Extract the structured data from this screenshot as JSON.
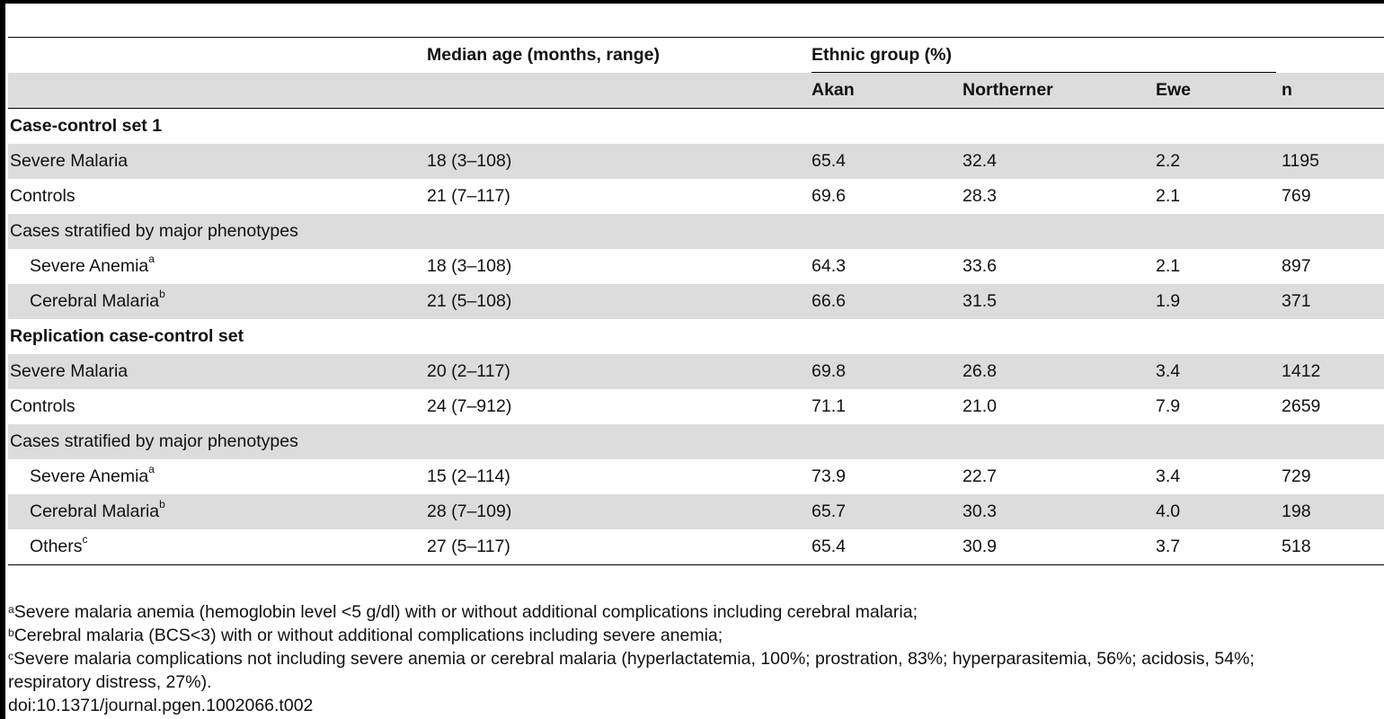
{
  "header": {
    "median_age": "Median age (months, range)",
    "ethnic_group": "Ethnic group (%)",
    "akan": "Akan",
    "northerner": "Northerner",
    "ewe": "Ewe",
    "n": "n"
  },
  "sections": [
    {
      "title": "Case-control set 1",
      "rows": [
        {
          "label": "Severe Malaria",
          "sup": "",
          "age": "18 (3–108)",
          "akan": "65.4",
          "northerner": "32.4",
          "ewe": "2.2",
          "n": "1195"
        },
        {
          "label": "Controls",
          "sup": "",
          "age": "21 (7–117)",
          "akan": "69.6",
          "northerner": "28.3",
          "ewe": "2.1",
          "n": "769"
        },
        {
          "label": "Cases stratified by major phenotypes",
          "sup": "",
          "age": "",
          "akan": "",
          "northerner": "",
          "ewe": "",
          "n": ""
        },
        {
          "label": "Severe Anemia",
          "sup": "a",
          "age": "18 (3–108)",
          "akan": "64.3",
          "northerner": "33.6",
          "ewe": "2.1",
          "n": "897"
        },
        {
          "label": "Cerebral Malaria",
          "sup": "b",
          "age": "21 (5–108)",
          "akan": "66.6",
          "northerner": "31.5",
          "ewe": "1.9",
          "n": "371"
        }
      ]
    },
    {
      "title": "Replication case-control set",
      "rows": [
        {
          "label": "Severe Malaria",
          "sup": "",
          "age": "20 (2–117)",
          "akan": "69.8",
          "northerner": "26.8",
          "ewe": "3.4",
          "n": "1412"
        },
        {
          "label": "Controls",
          "sup": "",
          "age": "24 (7–912)",
          "akan": "71.1",
          "northerner": "21.0",
          "ewe": "7.9",
          "n": "2659"
        },
        {
          "label": "Cases stratified by major phenotypes",
          "sup": "",
          "age": "",
          "akan": "",
          "northerner": "",
          "ewe": "",
          "n": ""
        },
        {
          "label": "Severe Anemia",
          "sup": "a",
          "age": "15 (2–114)",
          "akan": "73.9",
          "northerner": "22.7",
          "ewe": "3.4",
          "n": "729"
        },
        {
          "label": "Cerebral Malaria",
          "sup": "b",
          "age": "28 (7–109)",
          "akan": "65.7",
          "northerner": "30.3",
          "ewe": "4.0",
          "n": "198"
        },
        {
          "label": "Others",
          "sup": "c",
          "age": "27 (5–117)",
          "akan": "65.4",
          "northerner": "30.9",
          "ewe": "3.7",
          "n": "518"
        }
      ]
    }
  ],
  "footnotes": {
    "a_mark": "a",
    "a_text": "Severe malaria anemia (hemoglobin level <5 g/dl) with or without additional complications including cerebral malaria;",
    "b_mark": "b",
    "b_text": "Cerebral malaria (BCS<3) with or without additional complications including severe anemia;",
    "c_mark": "c",
    "c_text_1": "Severe malaria complications not including severe anemia or cerebral malaria (hyperlactatemia, 100%; prostration, 83%; hyperparasitemia, 56%; acidosis, 54%;",
    "c_text_2": " respiratory distress, 27%).",
    "doi": "doi:10.1371/journal.pgen.1002066.t002"
  }
}
